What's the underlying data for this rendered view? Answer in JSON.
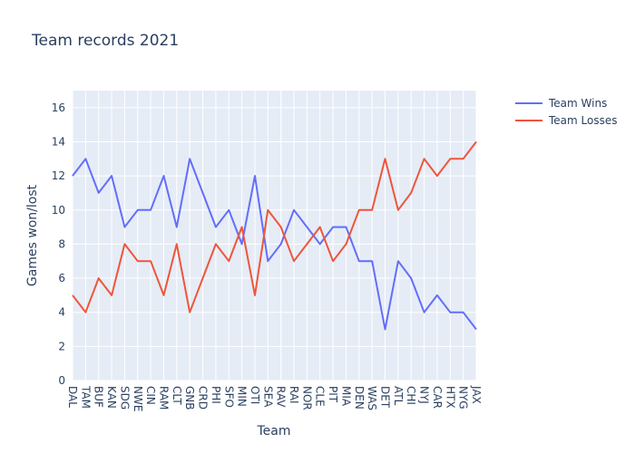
{
  "chart_data": {
    "type": "line",
    "title": "Team records 2021",
    "xlabel": "Team",
    "ylabel": "Games won/lost",
    "ylim": [
      0,
      17
    ],
    "yticks": [
      0,
      2,
      4,
      6,
      8,
      10,
      12,
      14,
      16
    ],
    "grid": true,
    "legend_position": "top-right",
    "categories": [
      "DAL",
      "TAM",
      "BUF",
      "KAN",
      "SDG",
      "NWE",
      "CIN",
      "RAM",
      "CLT",
      "GNB",
      "CRD",
      "PHI",
      "SFO",
      "MIN",
      "OTI",
      "SEA",
      "RAV",
      "RAI",
      "NOR",
      "CLE",
      "PIT",
      "MIA",
      "DEN",
      "WAS",
      "DET",
      "ATL",
      "CHI",
      "NYJ",
      "CAR",
      "HTX",
      "NYG",
      "JAX"
    ],
    "series": [
      {
        "name": "Team Wins",
        "color": "#636efa",
        "values": [
          12,
          13,
          11,
          12,
          9,
          10,
          10,
          12,
          9,
          13,
          11,
          9,
          10,
          8,
          12,
          7,
          8,
          10,
          9,
          8,
          9,
          9,
          7,
          7,
          3,
          7,
          6,
          4,
          5,
          4,
          4,
          3
        ]
      },
      {
        "name": "Team Losses",
        "color": "#ef553b",
        "values": [
          5,
          4,
          6,
          5,
          8,
          7,
          7,
          5,
          8,
          4,
          6,
          8,
          7,
          9,
          5,
          10,
          9,
          7,
          8,
          9,
          7,
          8,
          10,
          10,
          13,
          10,
          11,
          13,
          12,
          13,
          13,
          14
        ]
      }
    ]
  }
}
